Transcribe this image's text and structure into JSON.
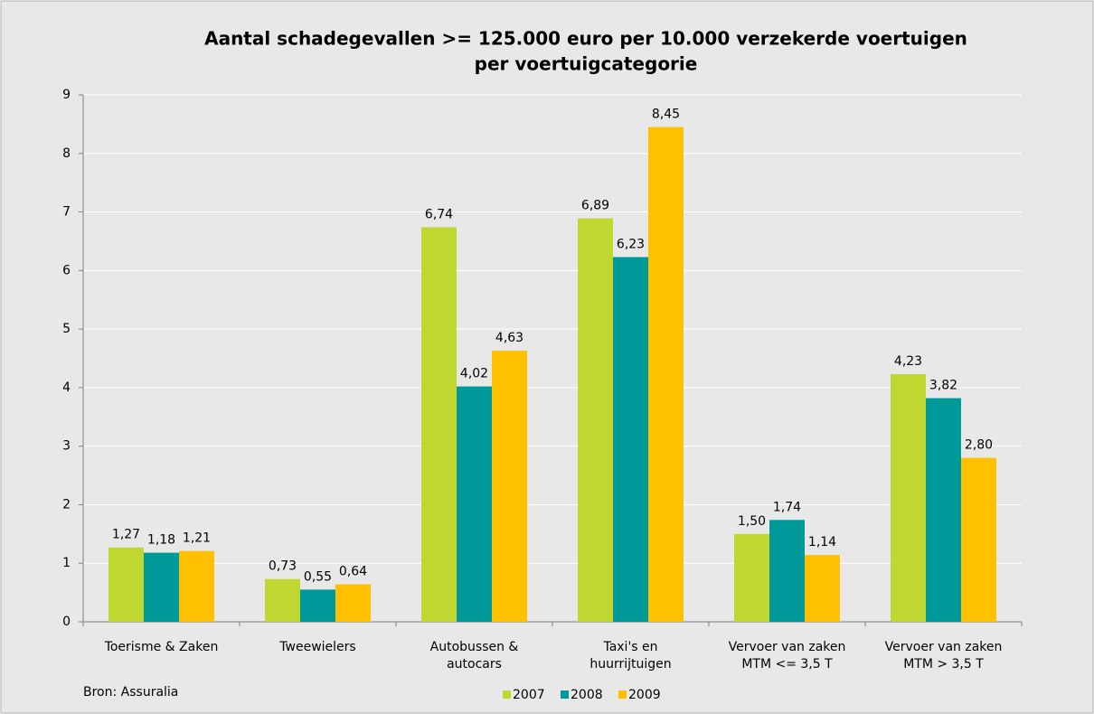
{
  "chart_data": {
    "type": "bar",
    "title": [
      "Aantal schadegevallen >= 125.000 euro per 10.000 verzekerde voertuigen",
      "per voertuigcategorie"
    ],
    "categories": [
      [
        "Toerisme & Zaken"
      ],
      [
        "Tweewielers"
      ],
      [
        "Autobussen &",
        "autocars"
      ],
      [
        "Taxi's en",
        "huurrijtuigen"
      ],
      [
        "Vervoer van zaken",
        "MTM <= 3,5 T"
      ],
      [
        "Vervoer van zaken",
        "MTM > 3,5 T"
      ]
    ],
    "series": [
      {
        "name": "2007",
        "color": "#bfd730",
        "values": [
          1.27,
          0.73,
          6.74,
          6.89,
          1.5,
          4.23
        ],
        "value_labels": [
          "1,27",
          "0,73",
          "6,74",
          "6,89",
          "1,50",
          "4,23"
        ]
      },
      {
        "name": "2008",
        "color": "#009999",
        "values": [
          1.18,
          0.55,
          4.02,
          6.23,
          1.74,
          3.82
        ],
        "value_labels": [
          "1,18",
          "0,55",
          "4,02",
          "6,23",
          "1,74",
          "3,82"
        ]
      },
      {
        "name": "2009",
        "color": "#ffc000",
        "values": [
          1.21,
          0.64,
          4.63,
          8.45,
          1.14,
          2.8
        ],
        "value_labels": [
          "1,21",
          "0,64",
          "4,63",
          "8,45",
          "1,14",
          "2,80"
        ]
      }
    ],
    "ylim": [
      0,
      9
    ],
    "yticks": [
      0,
      1,
      2,
      3,
      4,
      5,
      6,
      7,
      8,
      9
    ],
    "grid": true,
    "legend": "bottom",
    "source": "Bron: Assuralia"
  }
}
